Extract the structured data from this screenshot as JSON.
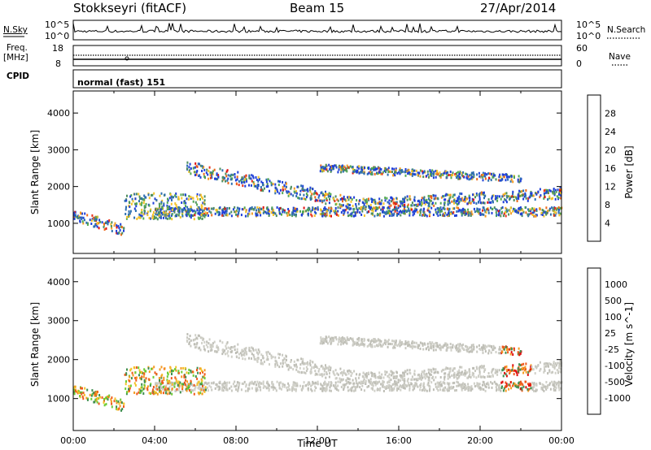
{
  "header": {
    "station": "Stokkseyri (fitACF)",
    "beam": "Beam 15",
    "date": "27/Apr/2014"
  },
  "side_labels": {
    "nsky": "N.Sky",
    "nsearch": "N.Search",
    "freq_line1": "Freq.",
    "freq_line2": "[MHz]",
    "nave": "Nave",
    "cpid": "CPID",
    "cpid_value": "normal (fast) 151"
  },
  "noise_axis": {
    "left_top": "10^5",
    "left_bottom": "10^0",
    "right_top": "10^5",
    "right_bottom": "10^0"
  },
  "freq_axis": {
    "left_ticks": [
      "18",
      "8"
    ],
    "right_ticks": [
      "60",
      "0"
    ]
  },
  "chart_data": [
    {
      "type": "heatmap",
      "name": "power",
      "ylabel": "Slant Range [km]",
      "xlabel": "",
      "ylim": [
        180,
        4600
      ],
      "xlim": [
        0,
        24
      ],
      "y_ticks": [
        "1000",
        "2000",
        "3000",
        "4000"
      ],
      "colorbar": {
        "label": "Power [dB]",
        "ticks": [
          "4",
          "8",
          "12",
          "16",
          "20",
          "24",
          "28"
        ],
        "colors": [
          "#1f3fd8",
          "#2e6fb0",
          "#4f8f5f",
          "#52a852",
          "#f4c32a",
          "#f49a22",
          "#ee6a1c",
          "#e8321c",
          "#e01010"
        ]
      },
      "echo_bands": [
        {
          "x_start": 0.0,
          "x_end": 2.5,
          "range_start": 1200,
          "range_end": 800,
          "width": 150
        },
        {
          "x_start": 4.0,
          "x_end": 24.0,
          "range_start": 1300,
          "range_end": 1300,
          "width": 120
        },
        {
          "x_start": 5.5,
          "x_end": 14.0,
          "range_start": 2500,
          "range_end": 1500,
          "width": 180
        },
        {
          "x_start": 14.0,
          "x_end": 24.0,
          "range_start": 1500,
          "range_end": 1800,
          "width": 150
        },
        {
          "x_start": 12.0,
          "x_end": 22.0,
          "range_start": 2500,
          "range_end": 2200,
          "width": 100
        }
      ]
    },
    {
      "type": "heatmap",
      "name": "velocity",
      "ylabel": "Slant Range [km]",
      "xlabel": "Time UT",
      "ylim": [
        180,
        4600
      ],
      "xlim": [
        0,
        24
      ],
      "y_ticks": [
        "1000",
        "2000",
        "3000",
        "4000"
      ],
      "x_ticks": [
        "00:00",
        "04:00",
        "08:00",
        "12:00",
        "16:00",
        "20:00",
        "00:00"
      ],
      "colorbar": {
        "label": "Velocity [m s^-1]",
        "ticks": [
          "1000",
          "500",
          "100",
          "25",
          "-25",
          "-100",
          "-500",
          "-1000"
        ],
        "colors": [
          "#2234c8",
          "#2f6fb5",
          "#3f8f4f",
          "#6ccc34",
          "#c8c8c0",
          "#c8c8c0",
          "#f4c32a",
          "#f49a22",
          "#ee5a1c",
          "#e01010"
        ]
      }
    }
  ]
}
